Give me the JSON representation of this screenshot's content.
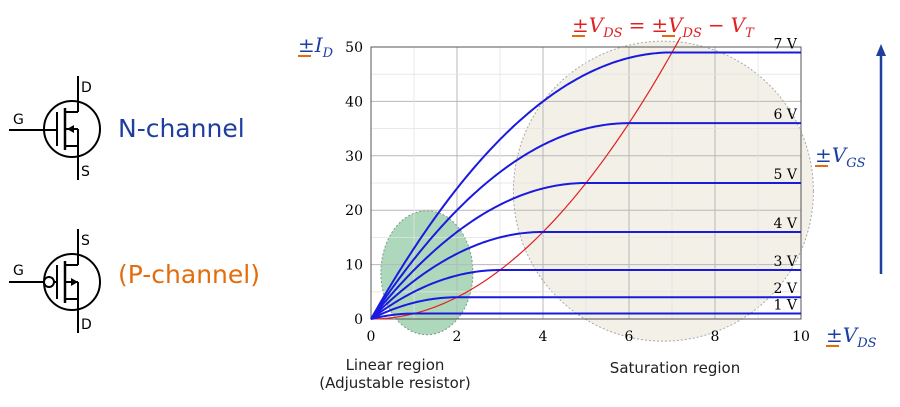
{
  "symbols": {
    "n_channel": {
      "label": "N-channel",
      "gate": "G",
      "top": "D",
      "bottom": "S"
    },
    "p_channel": {
      "label": "(P-channel)",
      "gate": "G",
      "top": "S",
      "bottom": "D"
    }
  },
  "regions": {
    "linear": {
      "line1": "Linear region",
      "line2": "(Adjustable resistor)"
    },
    "saturation": {
      "label": "Saturation region"
    }
  },
  "labels": {
    "sign": "±",
    "id_var": "I",
    "id_sub": "D",
    "vgs_var": "V",
    "vgs_sub": "GS",
    "vds_var": "V",
    "vds_sub": "DS",
    "boundary_eq": {
      "lhs_var": "V",
      "lhs_sub": "DS",
      "equals": "=",
      "rhs_var": "V",
      "rhs_sub": "DS",
      "minus": "−",
      "vt_var": "V",
      "vt_sub": "T"
    }
  },
  "colors": {
    "curve": "#1a1adf",
    "boundary": "#e02020",
    "sign_underline": "#e46c0a",
    "n_label": "#1f3f9f",
    "p_label": "#e46c0a",
    "linear_fill": "#8cc7a0",
    "saturation_fill": "#efebe0"
  },
  "chart_data": {
    "type": "line",
    "x_ticks": [
      0,
      2,
      4,
      6,
      8,
      10
    ],
    "y_ticks": [
      0,
      10,
      20,
      30,
      40,
      50
    ],
    "xlim": [
      0,
      10
    ],
    "ylim": [
      0,
      50
    ],
    "grid": true,
    "series": [
      {
        "name": "1 V",
        "vsat": 1,
        "isat": 1
      },
      {
        "name": "2 V",
        "vsat": 2,
        "isat": 4
      },
      {
        "name": "3 V",
        "vsat": 3,
        "isat": 9
      },
      {
        "name": "4 V",
        "vsat": 4,
        "isat": 16
      },
      {
        "name": "5 V",
        "vsat": 5,
        "isat": 25
      },
      {
        "name": "6 V",
        "vsat": 6,
        "isat": 36
      },
      {
        "name": "7 V",
        "vsat": 7,
        "isat": 49
      }
    ],
    "boundary": {
      "x": [
        0,
        1,
        2,
        3,
        4,
        5,
        6,
        7
      ],
      "y": [
        0,
        1,
        4,
        9,
        16,
        25,
        36,
        49
      ]
    }
  }
}
